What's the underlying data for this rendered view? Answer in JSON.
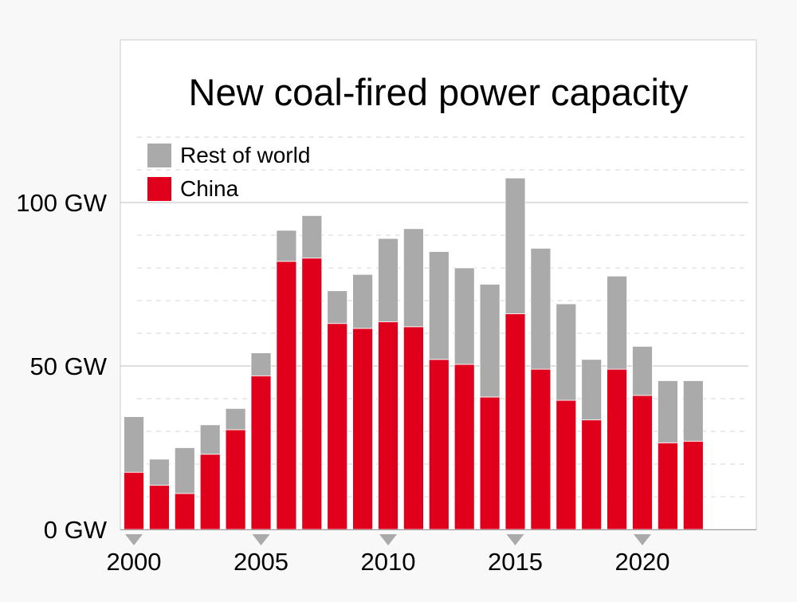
{
  "chart_data": {
    "type": "bar",
    "stacked": true,
    "title": "New coal-fired power capacity",
    "xlabel": "",
    "ylabel": "",
    "ylim": [
      0,
      120
    ],
    "y_ticks": [
      {
        "value": 0,
        "label": "0 GW"
      },
      {
        "value": 50,
        "label": "50 GW"
      },
      {
        "value": 100,
        "label": "100 GW"
      }
    ],
    "x_ticks": [
      {
        "value": 2000,
        "label": "2000"
      },
      {
        "value": 2005,
        "label": "2005"
      },
      {
        "value": 2010,
        "label": "2010"
      },
      {
        "value": 2015,
        "label": "2015"
      },
      {
        "value": 2020,
        "label": "2020"
      }
    ],
    "xlim": [
      2000,
      2024
    ],
    "minor_gridline_step": 10,
    "categories": [
      2000,
      2001,
      2002,
      2003,
      2004,
      2005,
      2006,
      2007,
      2008,
      2009,
      2010,
      2011,
      2012,
      2013,
      2014,
      2015,
      2016,
      2017,
      2018,
      2019,
      2020,
      2021,
      2022
    ],
    "series": [
      {
        "name": "China",
        "color": "#e0001c",
        "values": [
          17.5,
          13.5,
          11,
          23,
          30.5,
          47,
          82,
          83,
          63,
          61.5,
          63.5,
          62,
          52,
          50.5,
          40.5,
          66,
          49,
          39.5,
          33.5,
          49,
          41,
          26.5,
          27
        ]
      },
      {
        "name": "Rest of world",
        "color": "#aaaaaa",
        "values": [
          17,
          8,
          14,
          9,
          6.5,
          7,
          9.5,
          13,
          10,
          16.5,
          25.5,
          30,
          33,
          29.5,
          34.5,
          41.5,
          37,
          29.5,
          18.5,
          28.5,
          15,
          19,
          18.5
        ]
      }
    ],
    "legend": {
      "placement": "top-left",
      "entries": [
        {
          "name": "Rest of world",
          "color": "#aaaaaa"
        },
        {
          "name": "China",
          "color": "#e0001c"
        }
      ]
    },
    "grid": true,
    "background": "#ffffff",
    "axis_color": "#999999",
    "marker_color": "#aaaaaa"
  }
}
